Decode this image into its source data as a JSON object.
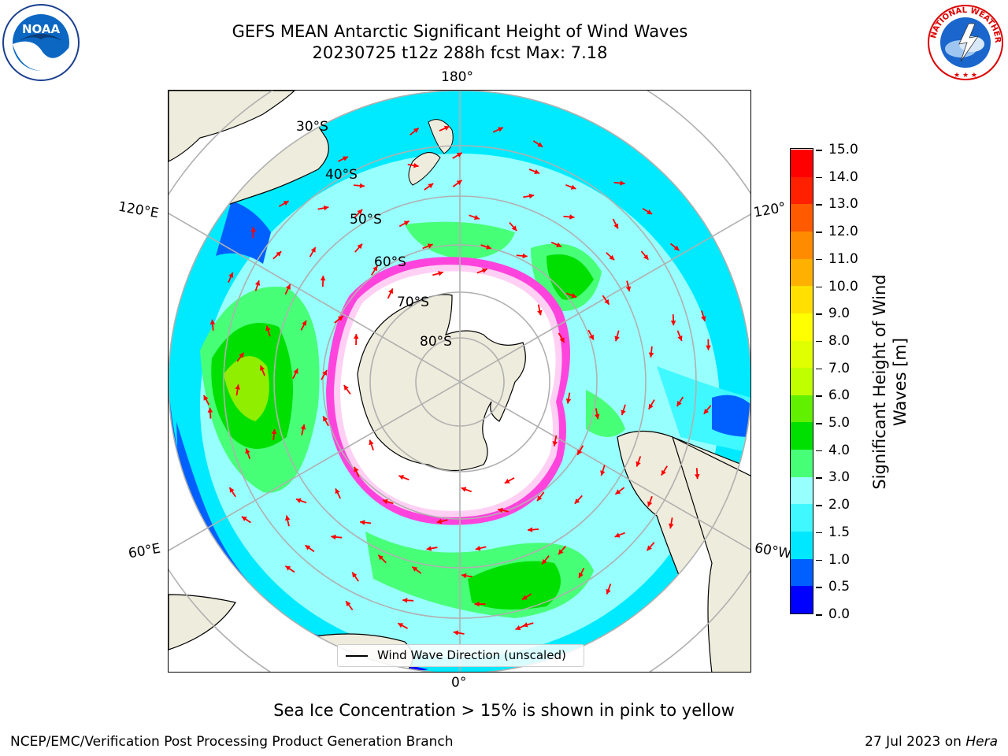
{
  "header": {
    "title_line1": "GEFS MEAN Antarctic Significant Height of Wind Waves",
    "title_line2": "20230725 t12z 288h fcst   Max: 7.18"
  },
  "logos": {
    "left": "noaa-logo",
    "left_text": "NOAA",
    "right": "nws-logo",
    "right_text": "NATIONAL WEATHER SERVICE"
  },
  "map": {
    "projection": "south-polar-stereographic",
    "longitude_labels": [
      "180°",
      "120°E",
      "120°",
      "60°E",
      "60°W",
      "0°"
    ],
    "latitude_labels": [
      "30°S",
      "40°S",
      "50°S",
      "60°S",
      "70°S",
      "80°S"
    ],
    "land_color": "#eeecdc",
    "ice_edge_color": "#ff44dd",
    "legend_label": "Wind Wave Direction (unscaled)",
    "arrow_color": "#ff0000"
  },
  "colorbar": {
    "title": "Significant Height of Wind Waves [m]",
    "tick_labels": [
      "15.0",
      "14.0",
      "13.0",
      "12.0",
      "11.0",
      "10.0",
      "9.0",
      "8.0",
      "7.0",
      "6.0",
      "5.0",
      "4.0",
      "3.0",
      "2.0",
      "1.5",
      "1.0",
      "0.5",
      "0.0"
    ],
    "colors_bottom_to_top": [
      "#0000ff",
      "#0060ff",
      "#00e8ff",
      "#40f8ff",
      "#98ffff",
      "#48ff78",
      "#00e000",
      "#60f000",
      "#c0ff00",
      "#e0ff00",
      "#ffff00",
      "#ffe000",
      "#ffb000",
      "#ff8c00",
      "#ff5a00",
      "#ff2000",
      "#ff0000"
    ]
  },
  "footer": {
    "ice_note": "Sea Ice Concentration > 15% is shown in pink to yellow",
    "left": "NCEP/EMC/Verification Post Processing Product Generation Branch",
    "right_date": "27 Jul 2023 on ",
    "right_host": "Hera"
  }
}
